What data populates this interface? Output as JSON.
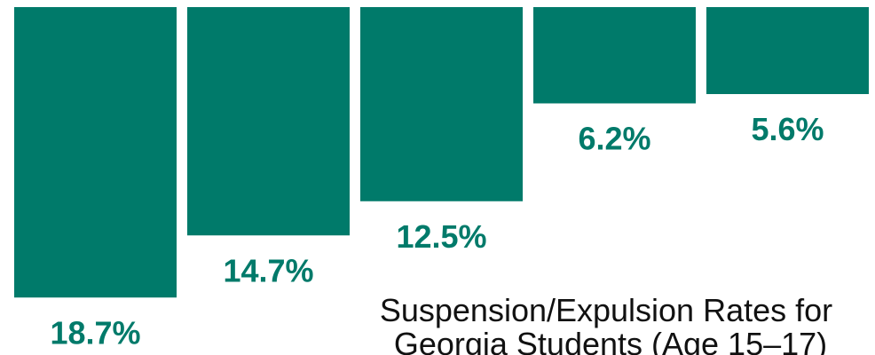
{
  "chart_data": {
    "type": "bar",
    "orientation": "vertical-inverted",
    "values": [
      18.7,
      14.7,
      12.5,
      6.2,
      5.6
    ],
    "value_labels": [
      "18.7%",
      "14.7%",
      "12.5%",
      "6.2%",
      "5.6%"
    ],
    "unit": "%",
    "title": "Suspension/Expulsion Rates for Georgia Students (Age 15–17)",
    "title_lines": [
      "Suspension/Expulsion Rates for",
      "Georgia Students (Age 15–17)"
    ],
    "grid": false,
    "legend": "none"
  },
  "colors": {
    "bar": "#007a6a",
    "label": "#007a6a",
    "title": "#111111",
    "background": "#ffffff"
  }
}
